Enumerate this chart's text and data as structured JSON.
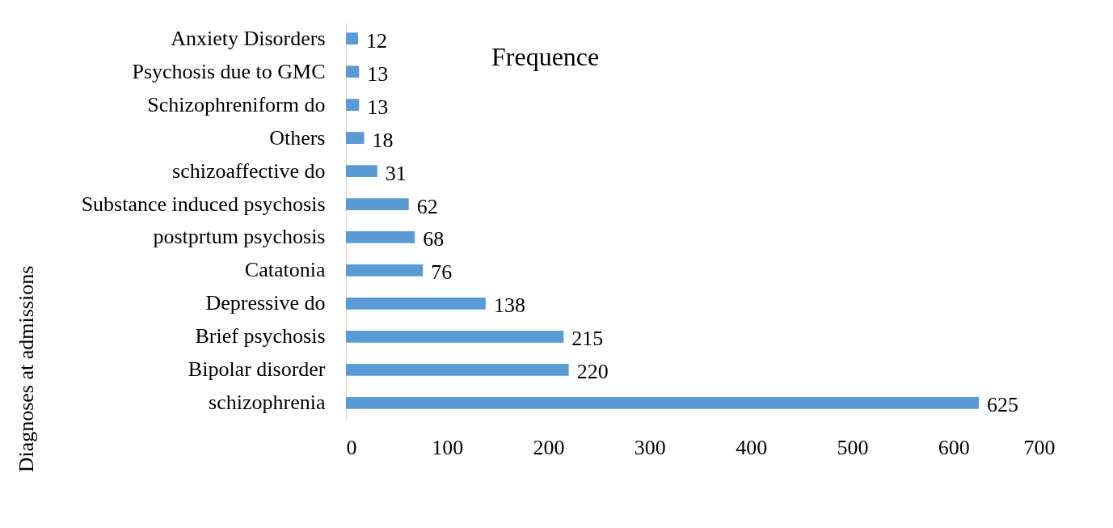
{
  "chart_data": {
    "type": "bar",
    "orientation": "horizontal",
    "title": "Frequence",
    "ylabel": "Diagnoses at admissions",
    "categories": [
      "Anxiety Disorders",
      "Psychosis due to GMC",
      "Schizophreniform do",
      "Others",
      "schizoaffective do",
      "Substance induced psychosis",
      "postprtum psychosis",
      "Catatonia",
      "Depressive do",
      "Brief psychosis",
      "Bipolar disorder",
      "schizophrenia"
    ],
    "values": [
      12,
      13,
      13,
      18,
      31,
      62,
      68,
      76,
      138,
      215,
      220,
      625
    ],
    "color": "#5b9bd5",
    "xlim": [
      0,
      700
    ],
    "xticks": [
      0,
      100,
      200,
      300,
      400,
      500,
      600,
      700
    ],
    "grid": false,
    "data_labels": true
  }
}
